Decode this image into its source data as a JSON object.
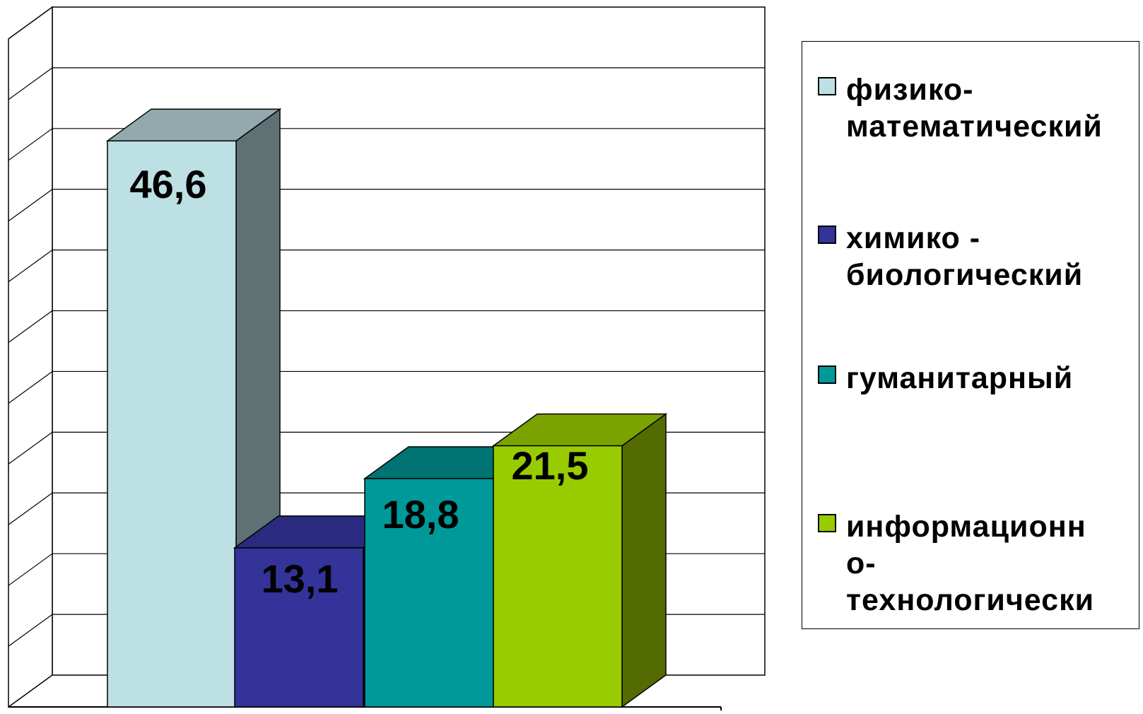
{
  "chart_data": {
    "type": "bar",
    "title": "",
    "xlabel": "",
    "ylabel": "",
    "ylim": [
      0,
      55
    ],
    "grid": true,
    "legend_position": "right",
    "categories": [
      "физико-математический",
      "химико - биологический",
      "гуманитарный",
      "информационно-технологически"
    ],
    "values": [
      46.6,
      13.1,
      18.8,
      21.5
    ],
    "data_labels": [
      "46,6",
      "13,1",
      "18,8",
      "21,5"
    ],
    "colors": [
      "#BDE0E4",
      "#333399",
      "#009999",
      "#99CC00"
    ],
    "side_colors": [
      "#5E7274",
      "#1F1F66",
      "#005C5C",
      "#536B00"
    ],
    "top_colors": [
      "#92AAAD",
      "#2A2A80",
      "#007373",
      "#7AA300"
    ]
  },
  "legend": {
    "items": [
      {
        "label": "физико-\nматематический",
        "color": "#BDE0E4"
      },
      {
        "label": "химико -\nбиологический",
        "color": "#333399"
      },
      {
        "label": "гуманитарный",
        "color": "#009999"
      },
      {
        "label": "информационн\nо-\nтехнологически",
        "color": "#99CC00"
      }
    ]
  }
}
